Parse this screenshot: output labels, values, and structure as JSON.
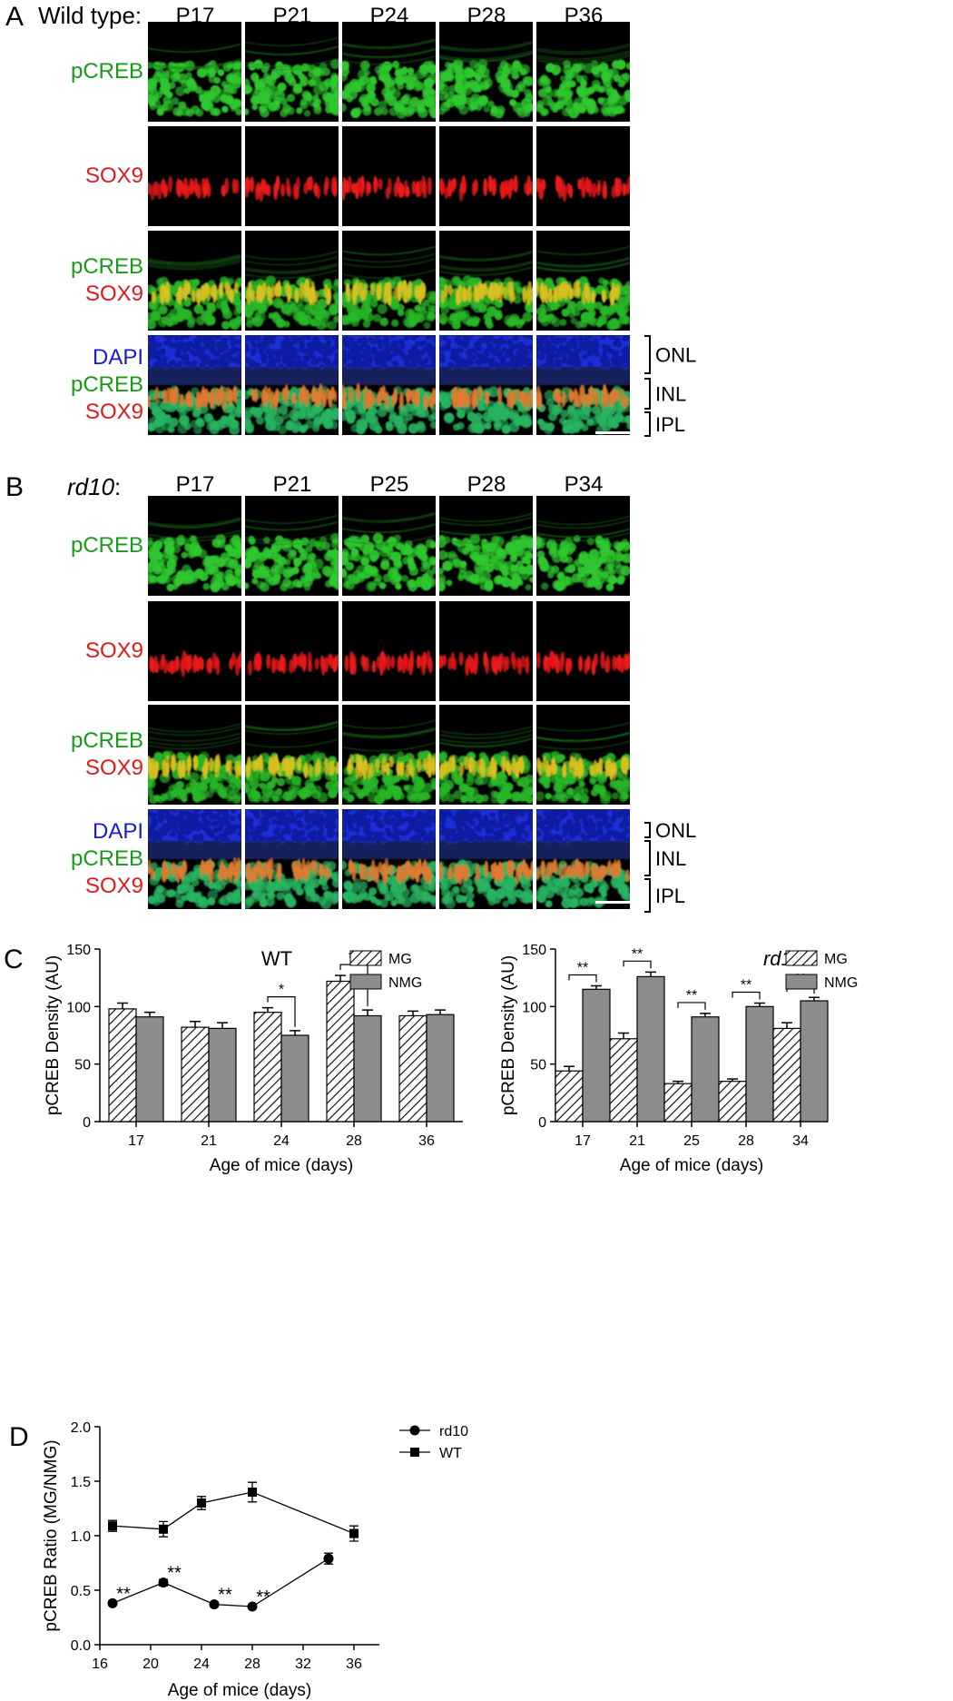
{
  "panelA": {
    "letter": "A",
    "title": "Wild type:",
    "columns": [
      "P17",
      "P21",
      "P24",
      "P28",
      "P36"
    ],
    "rows": [
      {
        "labels": [
          {
            "text": "pCREB",
            "color": "green"
          }
        ],
        "stain": "green"
      },
      {
        "labels": [
          {
            "text": "SOX9",
            "color": "red"
          }
        ],
        "stain": "red"
      },
      {
        "labels": [
          {
            "text": "pCREB",
            "color": "green"
          },
          {
            "text": "SOX9",
            "color": "red"
          }
        ],
        "stain": "merge"
      },
      {
        "labels": [
          {
            "text": "DAPI",
            "color": "blue"
          },
          {
            "text": "pCREB",
            "color": "green"
          },
          {
            "text": "SOX9",
            "color": "red"
          }
        ],
        "stain": "dapi"
      }
    ],
    "layers": [
      "ONL",
      "INL",
      "IPL"
    ]
  },
  "panelB": {
    "letter": "B",
    "title": "rd10",
    "title_suffix": ":",
    "columns": [
      "P17",
      "P21",
      "P25",
      "P28",
      "P34"
    ],
    "rows": [
      {
        "labels": [
          {
            "text": "pCREB",
            "color": "green"
          }
        ],
        "stain": "green"
      },
      {
        "labels": [
          {
            "text": "SOX9",
            "color": "red"
          }
        ],
        "stain": "red"
      },
      {
        "labels": [
          {
            "text": "pCREB",
            "color": "green"
          },
          {
            "text": "SOX9",
            "color": "red"
          }
        ],
        "stain": "merge"
      },
      {
        "labels": [
          {
            "text": "DAPI",
            "color": "blue"
          },
          {
            "text": "pCREB",
            "color": "green"
          },
          {
            "text": "SOX9",
            "color": "red"
          }
        ],
        "stain": "dapi"
      }
    ],
    "layers": [
      "ONL",
      "INL",
      "IPL"
    ]
  },
  "panelC": {
    "letter": "C"
  },
  "panelD": {
    "letter": "D"
  },
  "colors": {
    "green": "#1a9a1a",
    "red": "#e01a1a",
    "blue": "#1a1ad0",
    "nmg_bar": "#8c8c8c"
  },
  "chart_data": [
    {
      "type": "bar",
      "title": "WT",
      "categories": [
        "17",
        "21",
        "24",
        "28",
        "36"
      ],
      "series": [
        {
          "name": "MG",
          "values": [
            98,
            82,
            95,
            122,
            92
          ],
          "errors": [
            5,
            5,
            4,
            5,
            4
          ],
          "fill": "hatched"
        },
        {
          "name": "NMG",
          "values": [
            91,
            81,
            75,
            92,
            93
          ],
          "errors": [
            4,
            5,
            4,
            5,
            4
          ],
          "fill": "gray"
        }
      ],
      "significance": [
        {
          "category": "24",
          "label": "*"
        },
        {
          "category": "28",
          "label": "**"
        }
      ],
      "xlabel": "Age of mice (days)",
      "ylabel": "pCREB Density (AU)",
      "ylim": [
        0,
        150
      ],
      "yticks": [
        "0",
        "50",
        "100",
        "150"
      ],
      "legend": "top-right"
    },
    {
      "type": "bar",
      "title": "rd10",
      "categories": [
        "17",
        "21",
        "25",
        "28",
        "34"
      ],
      "series": [
        {
          "name": "MG",
          "values": [
            44,
            72,
            33,
            35,
            81
          ],
          "errors": [
            4,
            5,
            2,
            2,
            5
          ],
          "fill": "hatched"
        },
        {
          "name": "NMG",
          "values": [
            115,
            126,
            91,
            100,
            105
          ],
          "errors": [
            3,
            4,
            3,
            3,
            3
          ],
          "fill": "gray"
        }
      ],
      "significance": [
        {
          "category": "17",
          "label": "**"
        },
        {
          "category": "21",
          "label": "**"
        },
        {
          "category": "25",
          "label": "**"
        },
        {
          "category": "28",
          "label": "**"
        },
        {
          "category": "34",
          "label": "**"
        }
      ],
      "xlabel": "Age of mice (days)",
      "ylabel": "pCREB Density (AU)",
      "ylim": [
        0,
        150
      ],
      "yticks": [
        "0",
        "50",
        "100",
        "150"
      ],
      "legend": "top-right"
    },
    {
      "type": "line",
      "series": [
        {
          "name": "rd10",
          "marker": "circle",
          "x": [
            17,
            21,
            25,
            28,
            34
          ],
          "y": [
            0.38,
            0.57,
            0.37,
            0.35,
            0.79
          ],
          "errors": [
            0.02,
            0.03,
            0.02,
            0.02,
            0.05
          ]
        },
        {
          "name": "WT",
          "marker": "square",
          "x": [
            17,
            21,
            24,
            28,
            36
          ],
          "y": [
            1.09,
            1.06,
            1.3,
            1.4,
            1.02
          ],
          "errors": [
            0.05,
            0.07,
            0.06,
            0.09,
            0.07
          ]
        }
      ],
      "annotations": [
        {
          "x": 17,
          "label": "**"
        },
        {
          "x": 21,
          "label": "**"
        },
        {
          "x": 25,
          "label": "**"
        },
        {
          "x": 28,
          "label": "**"
        }
      ],
      "xlabel": "Age of mice (days)",
      "ylabel": "pCREB Ratio (MG/NMG)",
      "xlim": [
        16,
        38
      ],
      "xticks": [
        "16",
        "20",
        "24",
        "28",
        "32",
        "36"
      ],
      "ylim": [
        0,
        2.0
      ],
      "yticks": [
        "0.0",
        "0.5",
        "1.0",
        "1.5",
        "2.0"
      ],
      "legend": "top-right"
    }
  ]
}
